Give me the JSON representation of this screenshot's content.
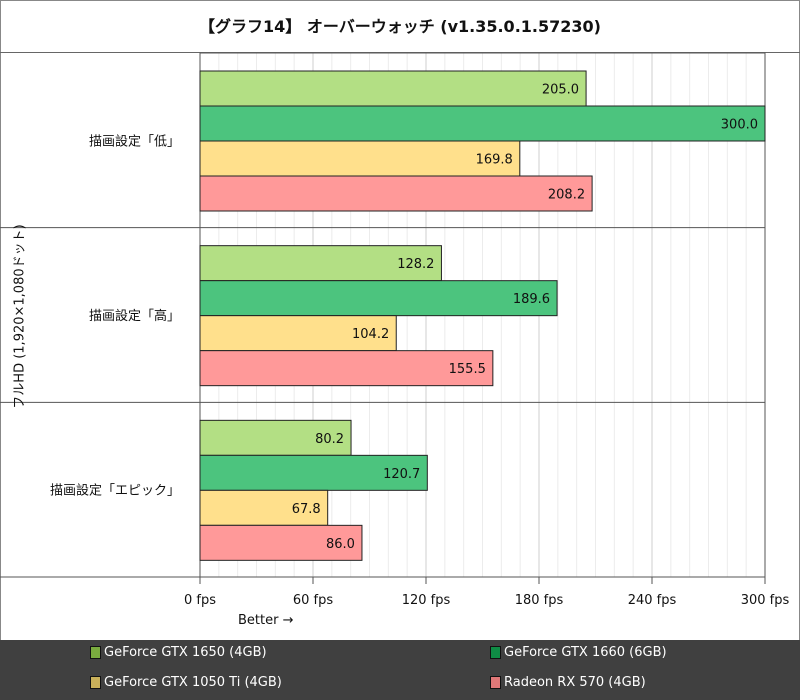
{
  "title": "【グラフ14】 オーバーウォッチ (v1.35.0.1.57230)",
  "chart_data": {
    "type": "bar",
    "orientation": "horizontal",
    "title": "【グラフ14】 オーバーウォッチ (v1.35.0.1.57230)",
    "ylabel": "フルHD (1,920×1,080ドット)",
    "xlabel": "Better →",
    "categories": [
      "描画設定「低」",
      "描画設定「高」",
      "描画設定「エピック」"
    ],
    "xlim": [
      0,
      300
    ],
    "x_ticks": [
      "0 fps",
      "60 fps",
      "120 fps",
      "180 fps",
      "240 fps",
      "300 fps"
    ],
    "grid": true,
    "legend_position": "bottom",
    "series": [
      {
        "name": "GeForce GTX 1650 (4GB)",
        "values": [
          205.0,
          128.2,
          80.2
        ],
        "color": "#b3df84",
        "legend_color": "#7aab3f"
      },
      {
        "name": "GeForce GTX 1660 (6GB)",
        "values": [
          300.0,
          189.6,
          120.7
        ],
        "color": "#4cc47e",
        "legend_color": "#0f8c45"
      },
      {
        "name": "GeForce GTX 1050 Ti (4GB)",
        "values": [
          169.8,
          104.2,
          67.8
        ],
        "color": "#ffe08c",
        "legend_color": "#c9b05a"
      },
      {
        "name": "Radeon RX 570 (4GB)",
        "values": [
          208.2,
          155.5,
          86.0
        ],
        "color": "#ff9999",
        "legend_color": "#e07878"
      }
    ]
  }
}
